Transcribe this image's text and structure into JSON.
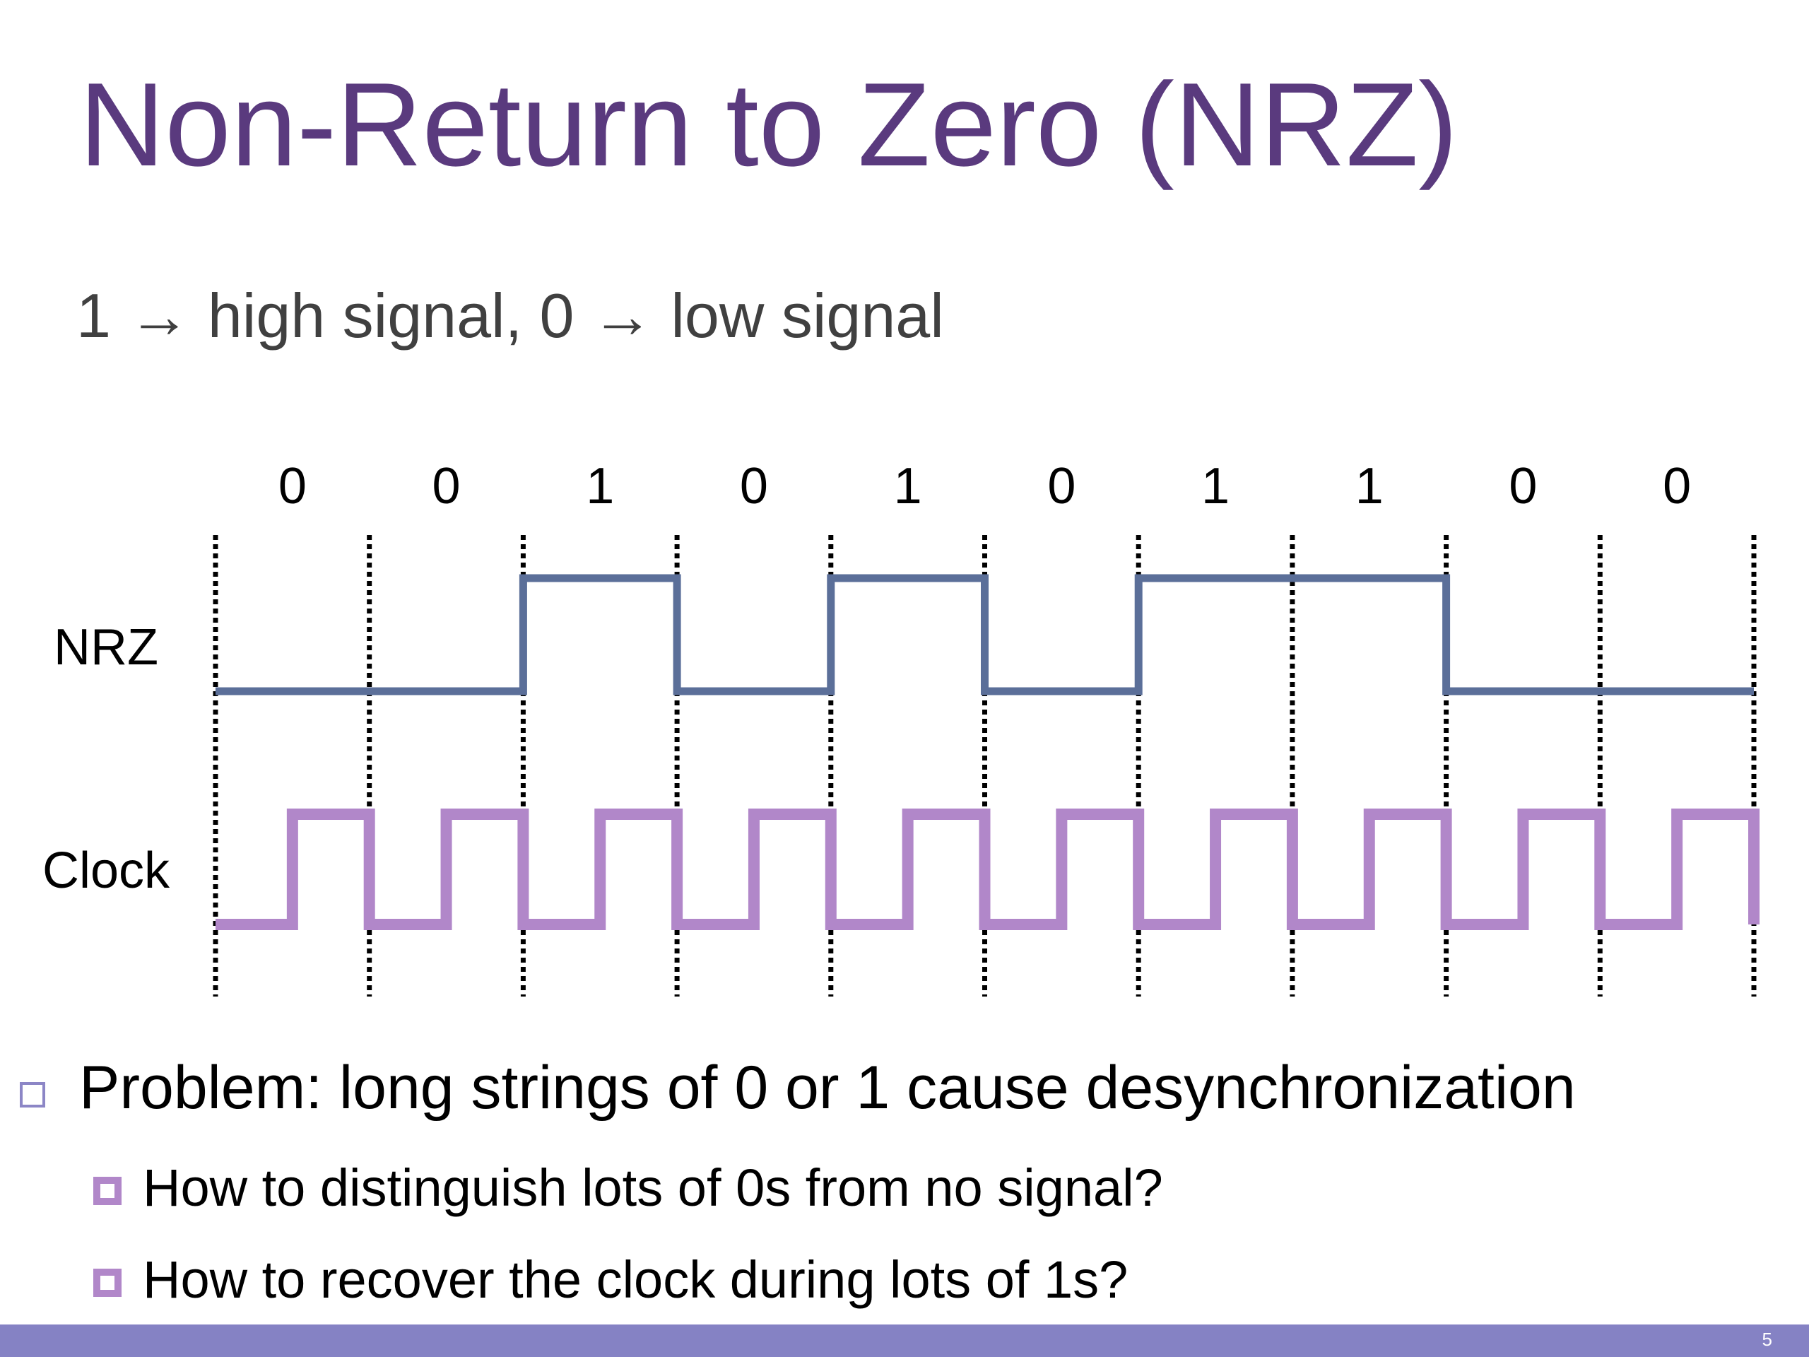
{
  "slide": {
    "title": "Non-Return to Zero (NRZ)",
    "subtitle": "1 → high signal, 0 → low signal",
    "page_number": "5"
  },
  "diagram": {
    "bits": [
      "0",
      "0",
      "1",
      "0",
      "1",
      "0",
      "1",
      "1",
      "0",
      "0"
    ],
    "signals": [
      {
        "label": "NRZ",
        "color": "#5b6f99",
        "levels": [
          0,
          0,
          1,
          0,
          1,
          0,
          1,
          1,
          0,
          0
        ]
      },
      {
        "label": "Clock",
        "color": "#b187c9",
        "pulses_per_bit": 1
      }
    ]
  },
  "bullets": {
    "main": "Problem: long strings of 0 or 1 cause desynchronization",
    "sub": [
      "How to distinguish lots of 0s from no signal?",
      "How to recover the clock during lots of 1s?"
    ]
  },
  "colors": {
    "title": "#5a3a7e",
    "footer": "#8582c4",
    "nrz_line": "#5b6f99",
    "clock_line": "#b187c9"
  }
}
